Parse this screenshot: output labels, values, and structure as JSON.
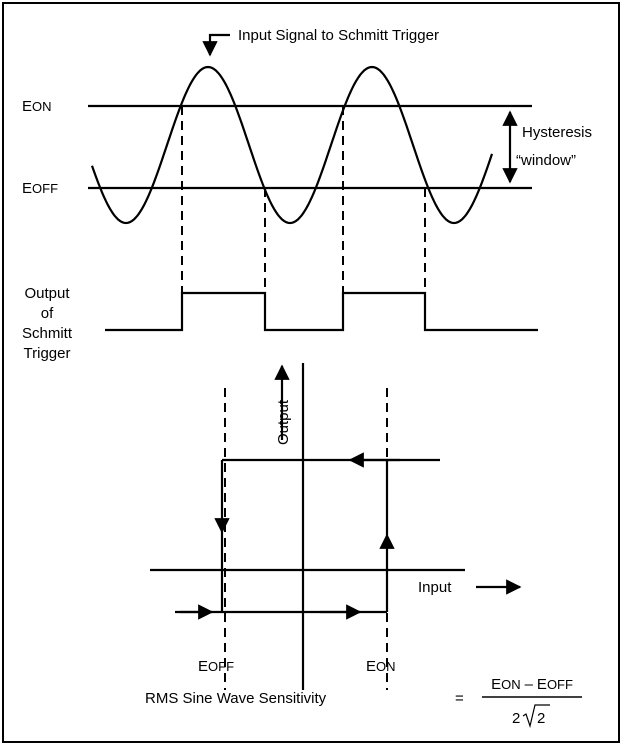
{
  "signal_label": "Input Signal to Schmitt Trigger",
  "e_on": {
    "letter": "E",
    "sub": "ON"
  },
  "e_off": {
    "letter": "E",
    "sub": "OFF"
  },
  "hysteresis": [
    "Hysteresis",
    "“window”"
  ],
  "output_label": [
    "Output",
    "of",
    "Schmitt",
    "Trigger"
  ],
  "axis_output": "Output",
  "axis_input": "Input",
  "bottom_e_off": {
    "letter": "E",
    "sub": "OFF"
  },
  "bottom_e_on": {
    "letter": "E",
    "sub": "ON"
  },
  "formula": {
    "text": "RMS Sine Wave Sensitivity",
    "equals": "=",
    "numerator": {
      "e1": "E",
      "sub1": "ON",
      "minus": "–",
      "e2": "E",
      "sub2": "OFF"
    },
    "denominator": {
      "factor": "2",
      "radicand": "2"
    }
  }
}
